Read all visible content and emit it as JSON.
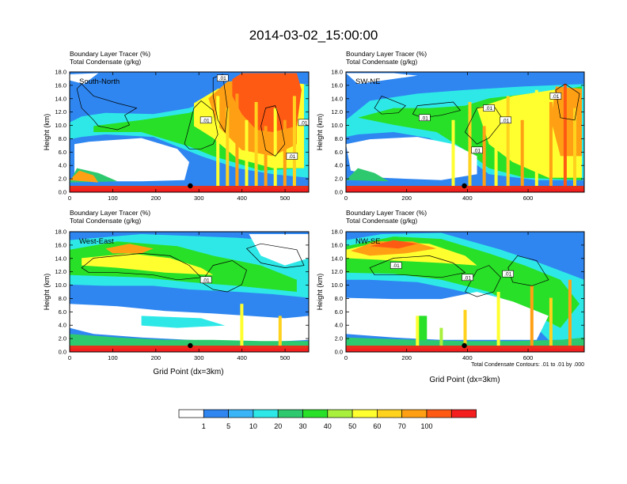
{
  "title": "2014-03-02_15:00:00",
  "colors": {
    "levels": [
      "#ffffff",
      "#2f86f0",
      "#39b4f7",
      "#2ee8e8",
      "#2ec96f",
      "#28e028",
      "#a8f03c",
      "#ffff30",
      "#ffd21e",
      "#ffa014",
      "#ff5a14",
      "#f51e1e"
    ],
    "surface_red": "#e8301c",
    "marker": "#000000"
  },
  "colorbar": {
    "labels": [
      "1",
      "5",
      "10",
      "20",
      "30",
      "40",
      "50",
      "60",
      "70",
      "100"
    ]
  },
  "footnote": "Total Condensate Contours: .01 to .01 by .000",
  "chart_data": [
    {
      "type": "heatmap",
      "panel_label": "South-North",
      "subtitle_line1": "Boundary Layer Tracer    (%)",
      "subtitle_line2": "Total Condensate    (g/kg)",
      "ylabel": "Height (km)",
      "xlabel": "",
      "xlim": [
        0,
        555
      ],
      "ylim": [
        0,
        18
      ],
      "xticks": [
        "0",
        "100",
        "200",
        "300",
        "400",
        "500"
      ],
      "yticks": [
        "0.0",
        "2.0",
        "4.0",
        "6.0",
        "8.0",
        "10.0",
        "12.0",
        "14.0",
        "16.0",
        "18.0"
      ],
      "marker_x": 280,
      "contour_labels": [
        ".01",
        ".01",
        ".01",
        ".01"
      ]
    },
    {
      "type": "heatmap",
      "panel_label": "SW-NE",
      "subtitle_line1": "Boundary Layer Tracer    (%)",
      "subtitle_line2": "Total Condensate    (g/kg)",
      "ylabel": "Height (km)",
      "xlabel": "",
      "xlim": [
        0,
        785
      ],
      "ylim": [
        0,
        18
      ],
      "xticks": [
        "0",
        "200",
        "400",
        "600"
      ],
      "yticks": [
        "0.0",
        "2.0",
        "4.0",
        "6.0",
        "8.0",
        "10.0",
        "12.0",
        "14.0",
        "16.0",
        "18.0"
      ],
      "marker_x": 390,
      "contour_labels": [
        ".01",
        ".01",
        ".01",
        ".01",
        ".01"
      ]
    },
    {
      "type": "heatmap",
      "panel_label": "West-East",
      "subtitle_line1": "Boundary Layer Tracer    (%)",
      "subtitle_line2": "Total Condensate    (g/kg)",
      "ylabel": "Height (km)",
      "xlabel": "Grid Point (dx=3km)",
      "xlim": [
        0,
        555
      ],
      "ylim": [
        0,
        18
      ],
      "xticks": [
        "0",
        "100",
        "200",
        "300",
        "400",
        "500"
      ],
      "yticks": [
        "0.0",
        "2.0",
        "4.0",
        "6.0",
        "8.0",
        "10.0",
        "12.0",
        "14.0",
        "16.0",
        "18.0"
      ],
      "marker_x": 280,
      "contour_labels": [
        ".01"
      ]
    },
    {
      "type": "heatmap",
      "panel_label": "NW-SE",
      "subtitle_line1": "Boundary Layer Tracer    (%)",
      "subtitle_line2": "Total Condensate    (g/kg)",
      "ylabel": "Height (km)",
      "xlabel": "Grid Point (dx=3km)",
      "xlim": [
        0,
        785
      ],
      "ylim": [
        0,
        18
      ],
      "xticks": [
        "0",
        "200",
        "400",
        "600"
      ],
      "yticks": [
        "0.0",
        "2.0",
        "4.0",
        "6.0",
        "8.0",
        "10.0",
        "12.0",
        "14.0",
        "16.0",
        "18.0"
      ],
      "marker_x": 390,
      "contour_labels": [
        ".01",
        ".01",
        ".01"
      ]
    }
  ]
}
